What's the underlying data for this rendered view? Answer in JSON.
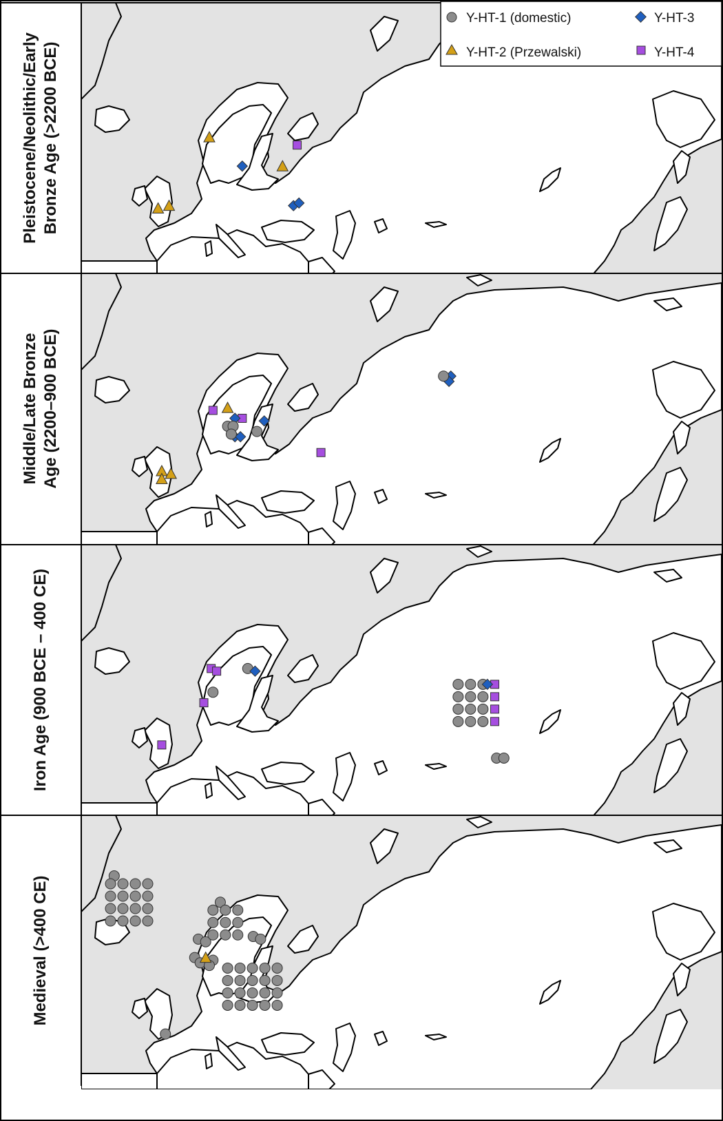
{
  "colors": {
    "land": "#e3e3e3",
    "border": "#000000",
    "domestic": "#8c8c8c",
    "przewalski": "#d4a017",
    "yht3": "#1f5fbf",
    "yht4": "#a64ee0"
  },
  "legend": {
    "items": [
      {
        "label": "Y-HT-1 (domestic)",
        "icon": "circle-marker-icon",
        "color": "#8c8c8c"
      },
      {
        "label": "Y-HT-3",
        "icon": "diamond-marker-icon",
        "color": "#1f5fbf"
      },
      {
        "label": "Y-HT-2 (Przewalski)",
        "icon": "triangle-marker-icon",
        "color": "#d4a017"
      },
      {
        "label": "Y-HT-4",
        "icon": "square-marker-icon",
        "color": "#a64ee0"
      }
    ]
  },
  "panels": [
    {
      "label_lines": [
        "Pleistocene/Neolithic/Early",
        "Bronze Age (>2200 BCE)"
      ],
      "markers": [
        {
          "type": "triangle",
          "lat": 54.5,
          "lon": 10
        },
        {
          "type": "triangle",
          "lat": 41,
          "lon": -4
        },
        {
          "type": "triangle",
          "lat": 41.5,
          "lon": -1
        },
        {
          "type": "triangle",
          "lat": 49,
          "lon": 30
        },
        {
          "type": "square",
          "lat": 53,
          "lon": 34
        },
        {
          "type": "diamond",
          "lat": 49,
          "lon": 19
        },
        {
          "type": "diamond",
          "lat": 41.5,
          "lon": 33
        },
        {
          "type": "diamond",
          "lat": 42,
          "lon": 34.5
        }
      ]
    },
    {
      "label_lines": [
        "Middle/Late Bronze",
        "Age (2200–900 BCE)"
      ],
      "markers": [
        {
          "type": "triangle",
          "lat": 42.5,
          "lon": -3
        },
        {
          "type": "triangle",
          "lat": 41,
          "lon": -3
        },
        {
          "type": "triangle",
          "lat": 42,
          "lon": -0.5
        },
        {
          "type": "triangle",
          "lat": 54.5,
          "lon": 15
        },
        {
          "type": "square",
          "lat": 54,
          "lon": 11
        },
        {
          "type": "square",
          "lat": 52.5,
          "lon": 19
        },
        {
          "type": "square",
          "lat": 46,
          "lon": 40.5
        },
        {
          "type": "diamond",
          "lat": 52.5,
          "lon": 17
        },
        {
          "type": "diamond",
          "lat": 52,
          "lon": 25
        },
        {
          "type": "diamond",
          "lat": 49,
          "lon": 17
        },
        {
          "type": "diamond",
          "lat": 49,
          "lon": 18.5
        },
        {
          "type": "diamond",
          "lat": 60.5,
          "lon": 76
        },
        {
          "type": "diamond",
          "lat": 59.5,
          "lon": 75.5
        },
        {
          "type": "circle",
          "lat": 51,
          "lon": 15
        },
        {
          "type": "circle",
          "lat": 51,
          "lon": 16.5
        },
        {
          "type": "circle",
          "lat": 49.5,
          "lon": 16
        },
        {
          "type": "circle",
          "lat": 50,
          "lon": 23
        },
        {
          "type": "circle",
          "lat": 60.5,
          "lon": 74
        }
      ]
    },
    {
      "label_lines": [
        "Iron Age (900 BCE – 400 CE)"
      ],
      "markers": [
        {
          "type": "square",
          "lat": 56.5,
          "lon": 10.5
        },
        {
          "type": "square",
          "lat": 56,
          "lon": 12
        },
        {
          "type": "square",
          "lat": 50,
          "lon": 8.5
        },
        {
          "type": "square",
          "lat": 42,
          "lon": -3
        },
        {
          "type": "circle",
          "lat": 56.5,
          "lon": 20.5
        },
        {
          "type": "circle",
          "lat": 52,
          "lon": 11
        },
        {
          "type": "diamond",
          "lat": 56,
          "lon": 22.5
        },
        {
          "type": "circle",
          "lat": 39.5,
          "lon": 88.5
        },
        {
          "type": "circle",
          "lat": 39.5,
          "lon": 90.5
        }
      ],
      "grids": [
        {
          "type": "circle",
          "rows": 4,
          "cols": 3,
          "lat": 53.5,
          "lon": 78
        },
        {
          "type": "square",
          "rows": 4,
          "cols": 1,
          "lat": 53.5,
          "lon": 88
        },
        {
          "type": "diamond",
          "rows": 1,
          "cols": 1,
          "lat": 53.5,
          "lon": 86
        }
      ]
    },
    {
      "label_lines": [
        "Medieval (>400 CE)"
      ],
      "markers": [
        {
          "type": "circle",
          "lat": 68.5,
          "lon": -16
        },
        {
          "type": "circle",
          "lat": 56.5,
          "lon": 7
        },
        {
          "type": "circle",
          "lat": 56,
          "lon": 9
        },
        {
          "type": "circle",
          "lat": 53,
          "lon": 6
        },
        {
          "type": "circle",
          "lat": 52,
          "lon": 7.5
        },
        {
          "type": "circle",
          "lat": 52.5,
          "lon": 11
        },
        {
          "type": "circle",
          "lat": 51.5,
          "lon": 10
        },
        {
          "type": "circle",
          "lat": 57,
          "lon": 22
        },
        {
          "type": "circle",
          "lat": 56.5,
          "lon": 24
        },
        {
          "type": "circle",
          "lat": 38.5,
          "lon": -2
        }
      ],
      "grids": [
        {
          "type": "circle",
          "rows": 4,
          "cols": 4,
          "lat": 67,
          "lon": -17
        },
        {
          "type": "circle",
          "rows": 1,
          "cols": 1,
          "lat": 63.5,
          "lon": 13
        },
        {
          "type": "circle",
          "rows": 3,
          "cols": 3,
          "lat": 62,
          "lon": 11
        },
        {
          "type": "circle",
          "rows": 4,
          "cols": 5,
          "lat": 51,
          "lon": 15
        },
        {
          "type": "triangle",
          "rows": 1,
          "cols": 1,
          "lat": 53,
          "lon": 9
        }
      ]
    }
  ]
}
